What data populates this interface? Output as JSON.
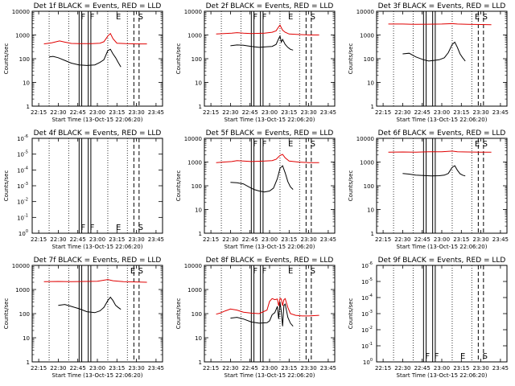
{
  "figure": {
    "xlabel": "Start Time (13-Oct-15 22:06:20)",
    "ylabel": "Counts/sec",
    "xticks": [
      "22:15",
      "22:30",
      "22:45",
      "23:00",
      "23:15",
      "23:30",
      "23:45"
    ],
    "x_minutes": [
      0,
      100
    ],
    "yticks_log": [
      "1",
      "10",
      "100",
      "1000",
      "10000"
    ],
    "yticks_tiny": [
      "10^0",
      "10^-1",
      "10^-2",
      "10^-3",
      "10^-4",
      "10^-5",
      "10^-6"
    ],
    "colors": {
      "events": "#000000",
      "lld": "#e00000"
    }
  },
  "chart_data": [
    {
      "type": "line",
      "title": "Det 1f BLACK = Events, RED = LLD",
      "ylim": [
        1,
        10000
      ],
      "yscale": "log",
      "markers": [
        "F",
        "F",
        "E",
        "S"
      ],
      "series": [
        {
          "color": "#e00000",
          "x": [
            9,
            15,
            21,
            25,
            30,
            36,
            46,
            52,
            55,
            58,
            60,
            62,
            65,
            72,
            80,
            88
          ],
          "values": [
            420,
            470,
            560,
            500,
            440,
            430,
            430,
            450,
            520,
            900,
            1150,
            700,
            450,
            430,
            420,
            420
          ]
        },
        {
          "color": "#000000",
          "x": [
            13,
            16,
            20,
            25,
            30,
            36,
            42,
            48,
            52,
            55,
            58,
            60,
            62,
            64,
            66,
            68
          ],
          "values": [
            120,
            125,
            110,
            85,
            65,
            55,
            52,
            55,
            70,
            90,
            220,
            250,
            160,
            110,
            70,
            45
          ]
        }
      ]
    },
    {
      "type": "line",
      "title": "Det 2f BLACK = Events, RED = LLD",
      "ylim": [
        1,
        10000
      ],
      "yscale": "log",
      "markers": [
        "F",
        "F",
        "E",
        "S"
      ],
      "series": [
        {
          "color": "#e00000",
          "x": [
            9,
            15,
            21,
            25,
            30,
            36,
            46,
            52,
            55,
            57,
            58,
            60,
            62,
            65,
            72,
            80,
            88
          ],
          "values": [
            1100,
            1150,
            1200,
            1250,
            1200,
            1150,
            1200,
            1300,
            1500,
            2200,
            2600,
            1600,
            1300,
            1100,
            1050,
            1000,
            1000
          ]
        },
        {
          "color": "#000000",
          "x": [
            20,
            25,
            30,
            36,
            42,
            48,
            52,
            55,
            57,
            58,
            59,
            60,
            62,
            64,
            66,
            68
          ],
          "values": [
            350,
            380,
            370,
            330,
            300,
            320,
            330,
            400,
            700,
            900,
            500,
            650,
            400,
            300,
            250,
            230
          ]
        }
      ]
    },
    {
      "type": "line",
      "title": "Det 3f BLACK = Events, RED = LLD",
      "ylim": [
        1,
        10000
      ],
      "yscale": "log",
      "markers": [
        "E",
        "S"
      ],
      "series": [
        {
          "color": "#e00000",
          "x": [
            9,
            20,
            30,
            40,
            50,
            58,
            62,
            70,
            80,
            88
          ],
          "values": [
            2900,
            2900,
            2800,
            2850,
            2900,
            3000,
            2900,
            2800,
            2750,
            2700
          ]
        },
        {
          "color": "#000000",
          "x": [
            20,
            25,
            30,
            36,
            40,
            44,
            48,
            52,
            55,
            58,
            60,
            62,
            64,
            66,
            68
          ],
          "values": [
            160,
            170,
            120,
            90,
            80,
            85,
            90,
            110,
            180,
            400,
            500,
            300,
            160,
            110,
            80
          ]
        }
      ]
    },
    {
      "type": "line",
      "title": "Det 4f BLACK = Events, RED = LLD",
      "ylim": [
        1,
        1e-06
      ],
      "yscale": "log",
      "markers": [
        "F",
        "F",
        "E",
        "S"
      ],
      "series": []
    },
    {
      "type": "line",
      "title": "Det 5f BLACK = Events, RED = LLD",
      "ylim": [
        1,
        10000
      ],
      "yscale": "log",
      "markers": [
        "F",
        "F",
        "E",
        "S"
      ],
      "series": [
        {
          "color": "#e00000",
          "x": [
            9,
            15,
            21,
            25,
            30,
            36,
            46,
            52,
            55,
            58,
            60,
            62,
            65,
            72,
            80,
            88
          ],
          "values": [
            950,
            1000,
            1050,
            1150,
            1100,
            1050,
            1100,
            1150,
            1300,
            1900,
            2100,
            1500,
            1100,
            1000,
            950,
            950
          ]
        },
        {
          "color": "#000000",
          "x": [
            20,
            25,
            30,
            34,
            38,
            42,
            46,
            50,
            53,
            56,
            58,
            60,
            62,
            64,
            66,
            68
          ],
          "values": [
            140,
            135,
            120,
            90,
            70,
            60,
            55,
            60,
            80,
            200,
            550,
            700,
            350,
            150,
            90,
            70
          ]
        }
      ]
    },
    {
      "type": "line",
      "title": "Det 6f BLACK = Events, RED = LLD",
      "ylim": [
        1,
        10000
      ],
      "yscale": "log",
      "markers": [
        "E",
        "S"
      ],
      "series": [
        {
          "color": "#e00000",
          "x": [
            9,
            20,
            30,
            40,
            50,
            58,
            62,
            70,
            80,
            88
          ],
          "values": [
            2600,
            2650,
            2600,
            2700,
            2700,
            2900,
            2700,
            2650,
            2600,
            2600
          ]
        },
        {
          "color": "#000000",
          "x": [
            20,
            25,
            30,
            36,
            42,
            48,
            52,
            55,
            58,
            60,
            62,
            64,
            66,
            68
          ],
          "values": [
            330,
            310,
            280,
            270,
            260,
            265,
            280,
            330,
            600,
            700,
            450,
            320,
            280,
            260
          ]
        }
      ]
    },
    {
      "type": "line",
      "title": "Det 7f BLACK = Events, RED = LLD",
      "ylim": [
        1,
        10000
      ],
      "yscale": "log",
      "markers": [
        "E",
        "S"
      ],
      "series": [
        {
          "color": "#e00000",
          "x": [
            9,
            20,
            30,
            40,
            50,
            58,
            62,
            70,
            80,
            88
          ],
          "values": [
            2100,
            2150,
            2100,
            2150,
            2200,
            2600,
            2300,
            2100,
            2050,
            2000
          ]
        },
        {
          "color": "#000000",
          "x": [
            20,
            25,
            30,
            36,
            42,
            48,
            52,
            55,
            58,
            60,
            62,
            64,
            66,
            68
          ],
          "values": [
            220,
            240,
            200,
            160,
            120,
            110,
            130,
            180,
            350,
            480,
            350,
            220,
            180,
            150
          ]
        }
      ]
    },
    {
      "type": "line",
      "title": "Det 8f BLACK = Events, RED = LLD",
      "ylim": [
        1,
        10000
      ],
      "yscale": "log",
      "markers": [
        "F",
        "F",
        "E",
        "S"
      ],
      "series": [
        {
          "color": "#e00000",
          "x": [
            9,
            12,
            16,
            20,
            25,
            30,
            36,
            42,
            48,
            50,
            52,
            54,
            56,
            57,
            58,
            59,
            60,
            61,
            62,
            64,
            66,
            70,
            75,
            80,
            88
          ],
          "values": [
            95,
            105,
            130,
            155,
            140,
            115,
            105,
            100,
            140,
            320,
            420,
            380,
            400,
            210,
            430,
            400,
            210,
            380,
            420,
            180,
            100,
            85,
            80,
            80,
            85
          ]
        },
        {
          "color": "#000000",
          "x": [
            20,
            25,
            30,
            36,
            42,
            48,
            50,
            52,
            54,
            56,
            57,
            58,
            59,
            60,
            61,
            62,
            64,
            66,
            68
          ],
          "values": [
            65,
            70,
            60,
            45,
            40,
            42,
            50,
            90,
            110,
            200,
            60,
            300,
            120,
            30,
            220,
            250,
            70,
            40,
            30
          ]
        }
      ]
    },
    {
      "type": "line",
      "title": "Det 9f BLACK = Events, RED = LLD",
      "ylim": [
        1,
        1e-06
      ],
      "yscale": "log",
      "markers": [
        "F",
        "F",
        "E",
        "S"
      ],
      "series": []
    }
  ]
}
